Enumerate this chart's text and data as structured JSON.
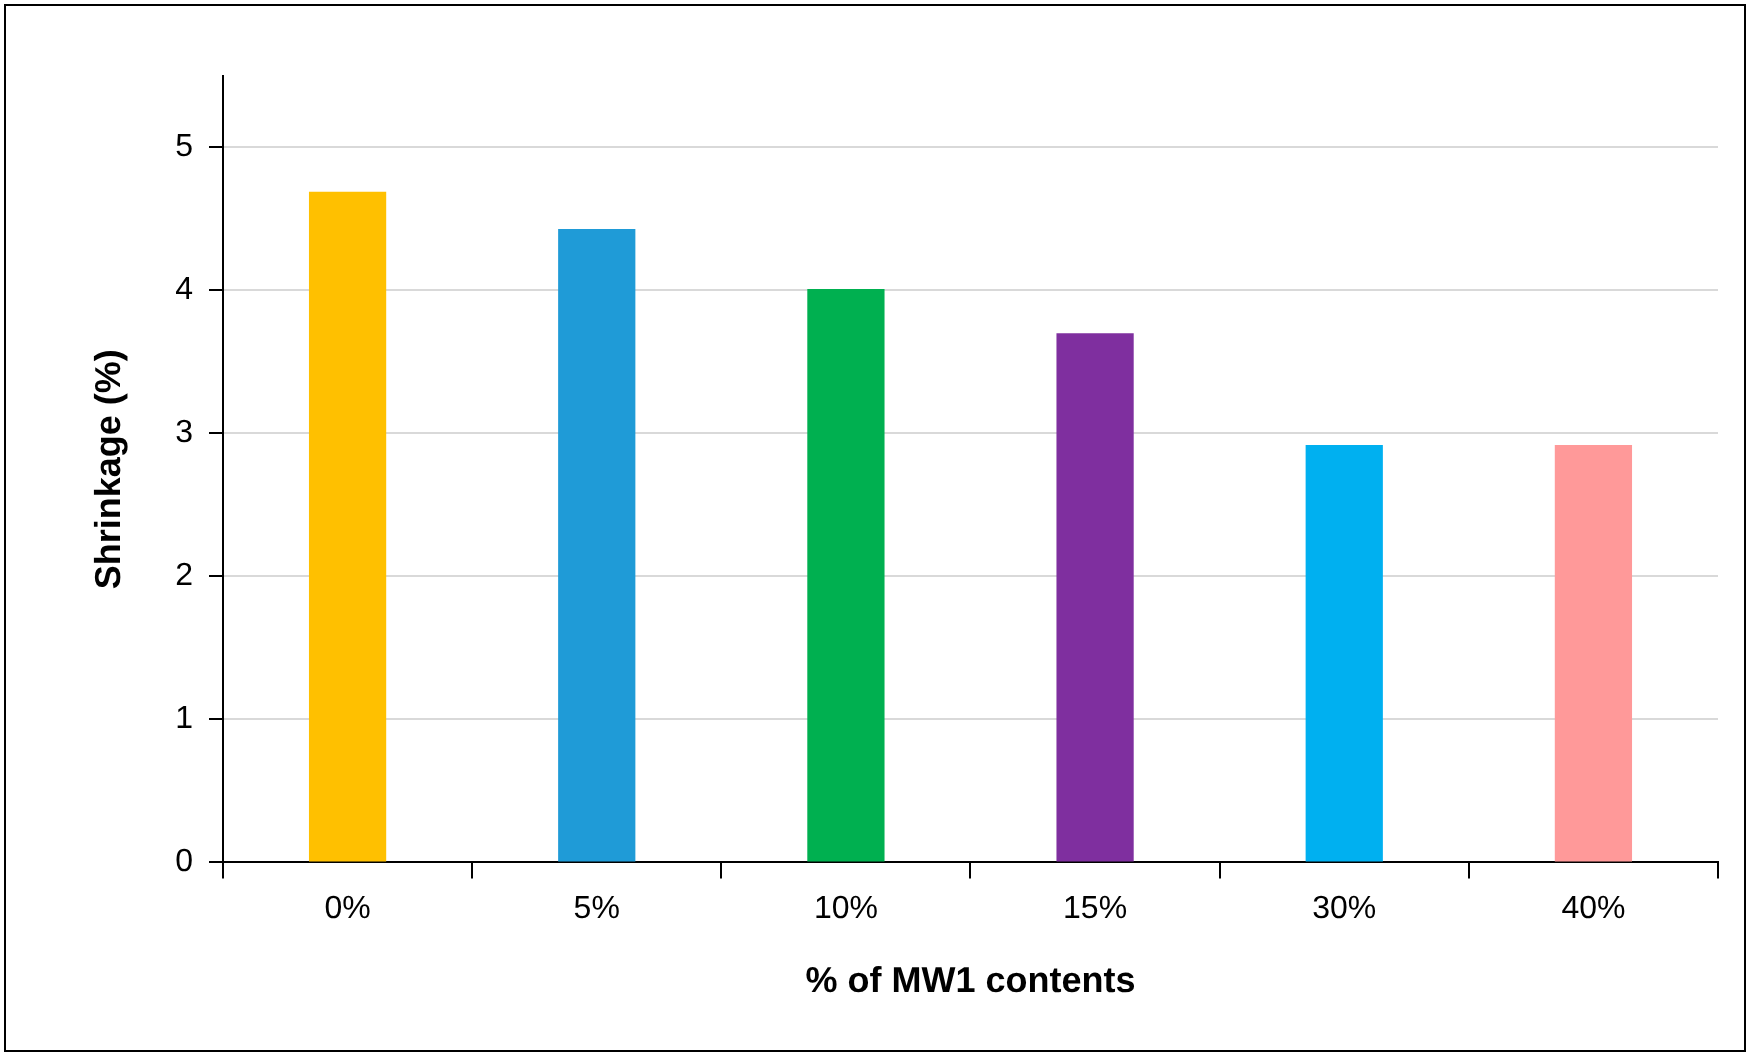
{
  "chart_data": {
    "type": "bar",
    "xlabel": "% of MW1 contents",
    "ylabel": "Shrinkage (%)",
    "categories": [
      "0%",
      "5%",
      "10%",
      "15%",
      "30%",
      "40%"
    ],
    "values": [
      4.69,
      4.43,
      4.01,
      3.7,
      2.92,
      2.92
    ],
    "colors": [
      "#ffc000",
      "#1f9bd7",
      "#00b050",
      "#7f2f9f",
      "#00b0f0",
      "#ff9999"
    ],
    "ylim": [
      0,
      5.5
    ],
    "yticks": [
      0,
      1,
      2,
      3,
      4,
      5
    ],
    "grid": "y",
    "legend": false
  }
}
